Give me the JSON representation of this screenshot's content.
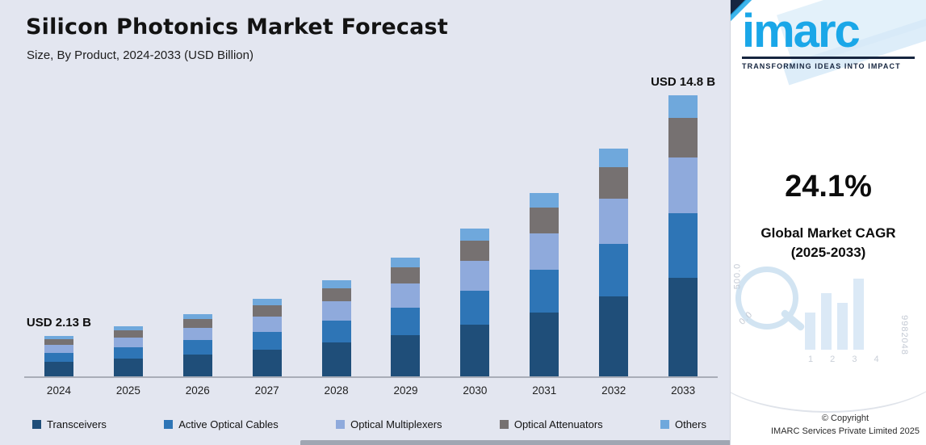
{
  "header": {
    "title": "Silicon Photonics Market Forecast",
    "subtitle": "Size, By Product, 2024-2033 (USD Billion)"
  },
  "chart_data": {
    "type": "bar",
    "stacked": true,
    "title": "Silicon Photonics Market Forecast",
    "subtitle": "Size, By Product, 2024-2033 (USD Billion)",
    "xlabel": "",
    "ylabel": "USD Billion",
    "legend_position": "bottom",
    "grid": false,
    "categories": [
      "2024",
      "2025",
      "2026",
      "2027",
      "2028",
      "2029",
      "2030",
      "2031",
      "2032",
      "2033"
    ],
    "totals": [
      2.13,
      2.64,
      3.28,
      4.07,
      5.05,
      6.27,
      7.78,
      9.66,
      11.99,
      14.8
    ],
    "series": [
      {
        "name": "Transceivers",
        "color": "#1f4e79",
        "values": [
          0.75,
          0.92,
          1.15,
          1.42,
          1.77,
          2.19,
          2.72,
          3.38,
          4.2,
          5.18
        ]
      },
      {
        "name": "Active Optical Cables",
        "color": "#2e75b6",
        "values": [
          0.49,
          0.61,
          0.75,
          0.94,
          1.16,
          1.44,
          1.79,
          2.22,
          2.76,
          3.4
        ]
      },
      {
        "name": "Optical Multiplexers",
        "color": "#8faadc",
        "values": [
          0.43,
          0.53,
          0.66,
          0.81,
          1.01,
          1.25,
          1.56,
          1.93,
          2.4,
          2.96
        ]
      },
      {
        "name": "Optical Attenuators",
        "color": "#767171",
        "values": [
          0.3,
          0.37,
          0.46,
          0.57,
          0.71,
          0.88,
          1.09,
          1.35,
          1.68,
          2.07
        ]
      },
      {
        "name": "Others",
        "color": "#6fa8dc",
        "values": [
          0.17,
          0.21,
          0.26,
          0.33,
          0.4,
          0.5,
          0.62,
          0.77,
          0.96,
          1.18
        ]
      }
    ],
    "annotations": [
      {
        "category_index": 0,
        "text": "USD 2.13 B"
      },
      {
        "category_index": 9,
        "text": "USD 14.8 B"
      }
    ]
  },
  "sidebar": {
    "logo_text": "imarc",
    "tagline": "TRANSFORMING IDEAS INTO IMPACT",
    "cagr_value": "24.1%",
    "cagr_label_line1": "Global Market CAGR",
    "cagr_label_line2": "(2025-2033)",
    "copyright_line1": "© Copyright",
    "copyright_line2": "IMARC Services Private Limited 2025",
    "decorative": [
      "500.0",
      "0.0",
      "9982048",
      "1 2 3 4"
    ]
  },
  "colors": {
    "background": "#e3e6f0",
    "axis": "#a9adb8",
    "logo_blue": "#1aa7e8",
    "navy": "#16253f"
  }
}
